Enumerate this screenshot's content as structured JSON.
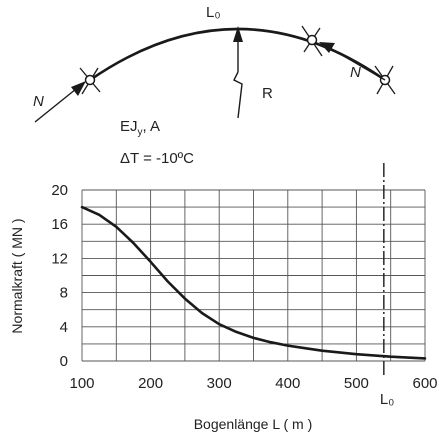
{
  "diagram": {
    "arc_label": "L₀",
    "force_left": "N",
    "force_right": "N",
    "radius_label": "R",
    "stiffness_label": "EJ",
    "stiffness_sub": "y",
    "stiffness_tail": ", A",
    "temperature_label": "ΔT = -10ºC"
  },
  "chart_data": {
    "type": "line",
    "xlabel": "Bogenlänge L ( m )",
    "ylabel": "Normalkraft ( MN )",
    "xlim": [
      100,
      600
    ],
    "ylim": [
      0,
      20
    ],
    "x_ticks": [
      100,
      200,
      300,
      400,
      500,
      600
    ],
    "y_ticks": [
      0,
      4,
      8,
      12,
      16,
      20
    ],
    "grid": true,
    "series": [
      {
        "x": [
          100,
          125,
          150,
          175,
          200,
          225,
          250,
          275,
          300,
          325,
          350,
          375,
          400,
          425,
          450,
          475,
          500,
          525,
          550,
          575,
          600
        ],
        "y": [
          18.0,
          17.1,
          15.7,
          13.8,
          11.6,
          9.3,
          7.3,
          5.6,
          4.3,
          3.4,
          2.7,
          2.2,
          1.8,
          1.5,
          1.2,
          1.0,
          0.8,
          0.65,
          0.5,
          0.4,
          0.3
        ]
      }
    ],
    "marker": {
      "x": 540,
      "label": "L₀"
    },
    "colors": {
      "line": "#1a1a1a",
      "grid": "#555555"
    }
  }
}
